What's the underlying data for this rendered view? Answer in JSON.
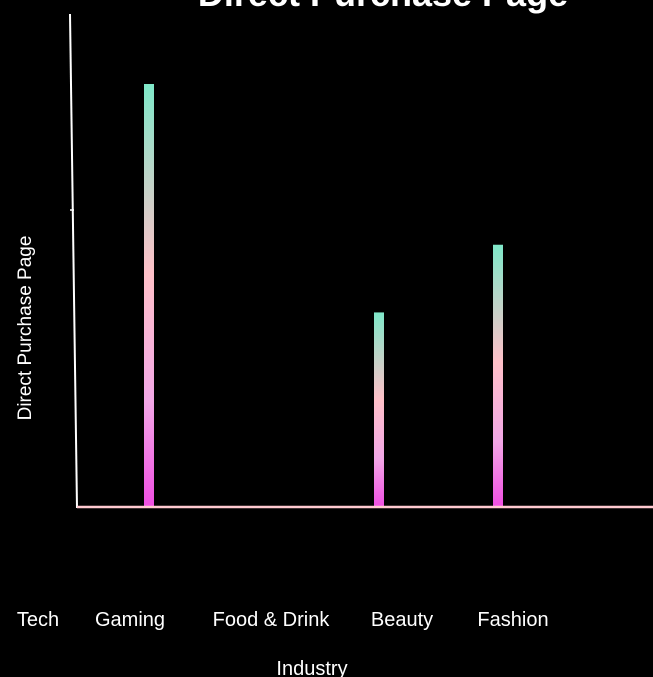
{
  "chart_data": {
    "type": "bar",
    "title": "Direct Purchase Page",
    "xlabel": "Industry",
    "ylabel": "Direct Purchase Page",
    "categories": [
      "Tech",
      "Gaming",
      "Food & Drink",
      "Beauty",
      "Fashion"
    ],
    "values": [
      0,
      100,
      0,
      46,
      62
    ],
    "ylim": [
      0,
      100
    ],
    "grid": false,
    "legend": "none"
  },
  "colors": {
    "background": "#000000",
    "text": "#ffffff",
    "axis": "#ffffff",
    "baseline": "#ffc9d0",
    "bar_top": "#7fe8c9",
    "bar_mid": "#ffc0c8",
    "bar_bottom": "#f04ee2"
  }
}
